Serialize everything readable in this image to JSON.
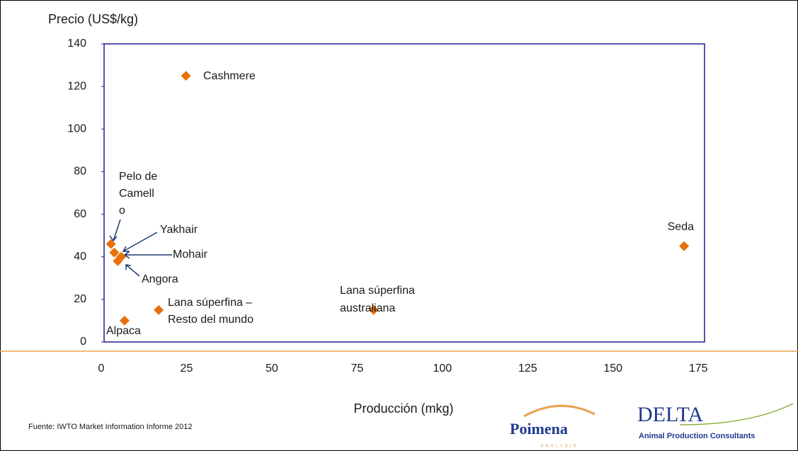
{
  "chart_data": {
    "type": "scatter",
    "y_label": "Precio (US$/kg)",
    "x_label": "Producción (mkg)",
    "source": "Fuente: IWTO Market Information Informe 2012",
    "logos": [
      "Poimena",
      "ANALYSIS",
      "DELTA",
      "Animal Production Consultants"
    ],
    "color": "#e8710a",
    "labels": [
      [
        "Cashmere"
      ],
      [
        "Seda"
      ],
      [
        "Lana súperfina",
        "australiana"
      ],
      [
        "Lana súperfina –",
        "Resto del mundo"
      ],
      [
        "Alpaca"
      ],
      [
        "Pelo de",
        "Camell",
        "o"
      ],
      [
        "Yakhair"
      ],
      [
        "Mohair"
      ],
      [
        "Angora"
      ]
    ],
    "x": [
      24,
      170,
      79,
      16,
      6,
      2,
      3,
      5,
      4
    ],
    "y": [
      125,
      45,
      15,
      15,
      10,
      46,
      42,
      40,
      38
    ],
    "xlim": [
      0,
      176
    ],
    "xticks": [
      0,
      25,
      50,
      75,
      100,
      125,
      150,
      175
    ],
    "ylim": [
      0,
      140
    ],
    "yticks": [
      0,
      20,
      40,
      60,
      80,
      100,
      120,
      140
    ]
  }
}
